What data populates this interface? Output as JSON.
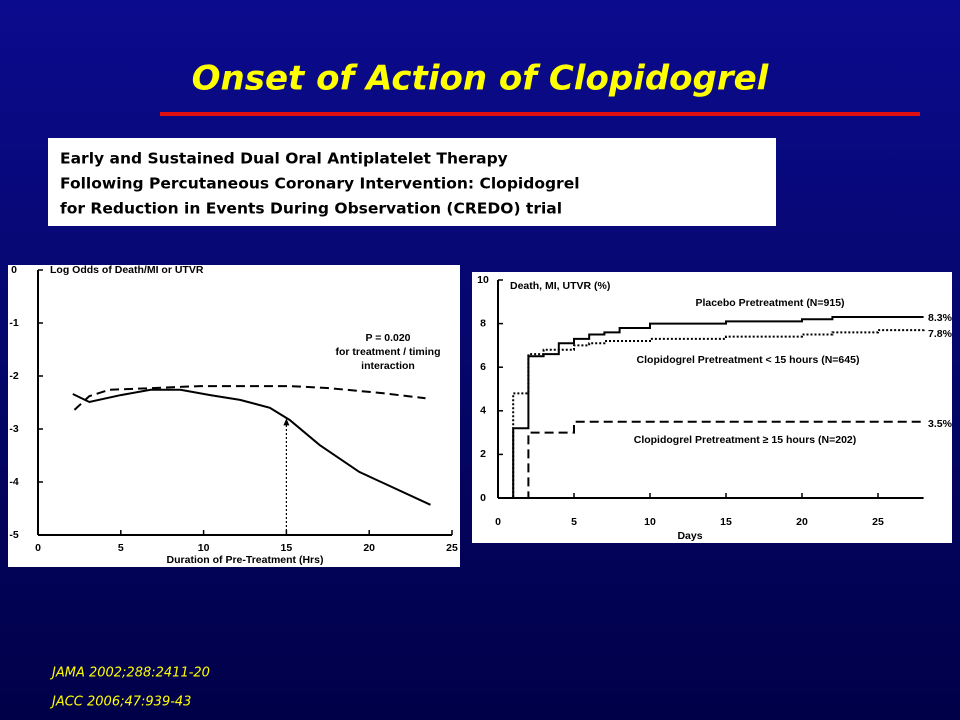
{
  "title": "Onset of Action of Clopidogrel",
  "subtitle_lines": [
    "Early and Sustained Dual Oral Antiplatelet Therapy",
    "Following Percutaneous Coronary Intervention: Clopidogrel",
    "for Reduction in Events During Observation (CREDO) trial"
  ],
  "references": [
    "JAMA 2002;288:2411-20",
    "JACC 2006;47:939-43"
  ],
  "chart_data": [
    {
      "type": "line",
      "y_label": "Log Odds of Death/MI or UTVR",
      "x_label": "Duration of Pre-Treatment (Hrs)",
      "annotation_lines": [
        "P = 0.020",
        "for treatment / timing",
        "interaction"
      ],
      "xlim": [
        0,
        25
      ],
      "xticks": [
        0,
        5,
        10,
        15,
        20,
        25
      ],
      "ylim": [
        -5,
        0
      ],
      "yticks": [
        0,
        -1,
        -2,
        -3,
        -4,
        -5
      ],
      "arrow": {
        "x": 15,
        "from": -5,
        "to": -2.8
      },
      "series": [
        {
          "color": "#000000",
          "line_style": "solid",
          "x": [
            2.1,
            3.1,
            5,
            6.8,
            8.6,
            10.4,
            12.2,
            14,
            15.2,
            17,
            19.4,
            23.7
          ],
          "values": [
            -2.34,
            -2.49,
            -2.36,
            -2.26,
            -2.26,
            -2.36,
            -2.45,
            -2.6,
            -2.83,
            -3.3,
            -3.81,
            -4.43
          ]
        },
        {
          "color": "#000000",
          "line_style": "dashed",
          "x": [
            2.2,
            3.1,
            4.3,
            6.8,
            9.8,
            12.8,
            15.2,
            17.6,
            20.7,
            23.4
          ],
          "values": [
            -2.64,
            -2.38,
            -2.26,
            -2.23,
            -2.19,
            -2.19,
            -2.19,
            -2.23,
            -2.32,
            -2.42
          ]
        }
      ]
    },
    {
      "type": "line",
      "step": "post",
      "y_label": "Death, MI, UTVR (%)",
      "x_label": "Days",
      "xlim": [
        0,
        28
      ],
      "xticks": [
        0,
        5,
        10,
        15,
        20,
        25
      ],
      "ylim": [
        0,
        10
      ],
      "yticks": [
        0,
        2,
        4,
        6,
        8,
        10
      ],
      "series": [
        {
          "name": "Placebo Pretreatment (N=915)",
          "color": "#000000",
          "line_style": "solid",
          "x": [
            0,
            1,
            2,
            3,
            4,
            5,
            6,
            7,
            8,
            10,
            15,
            20,
            22,
            28
          ],
          "values": [
            0,
            3.2,
            6.5,
            6.6,
            7.1,
            7.3,
            7.5,
            7.6,
            7.8,
            8.0,
            8.1,
            8.2,
            8.3,
            8.3
          ],
          "value_labels": [
            null,
            null,
            null,
            null,
            null,
            null,
            null,
            null,
            null,
            null,
            null,
            null,
            null,
            "8.3%"
          ]
        },
        {
          "name": "Clopidogrel Pretreatment < 15 hours (N=645)",
          "color": "#000000",
          "line_style": "dotted",
          "x": [
            0,
            1,
            2,
            3,
            5,
            6,
            7,
            10,
            15,
            20,
            22,
            25,
            28
          ],
          "values": [
            0,
            4.8,
            6.6,
            6.8,
            7.0,
            7.1,
            7.2,
            7.3,
            7.4,
            7.5,
            7.6,
            7.7,
            7.8
          ],
          "value_labels": [
            null,
            null,
            null,
            null,
            null,
            null,
            null,
            null,
            null,
            null,
            null,
            null,
            "7.8%"
          ]
        },
        {
          "name": "Clopidogrel Pretreatment ≥ 15 hours (N=202)",
          "color": "#000000",
          "line_style": "dashed",
          "x": [
            0,
            2,
            5,
            28
          ],
          "values": [
            0,
            3.0,
            3.5,
            3.5
          ],
          "value_labels": [
            null,
            null,
            null,
            "3.5%"
          ]
        }
      ]
    }
  ]
}
